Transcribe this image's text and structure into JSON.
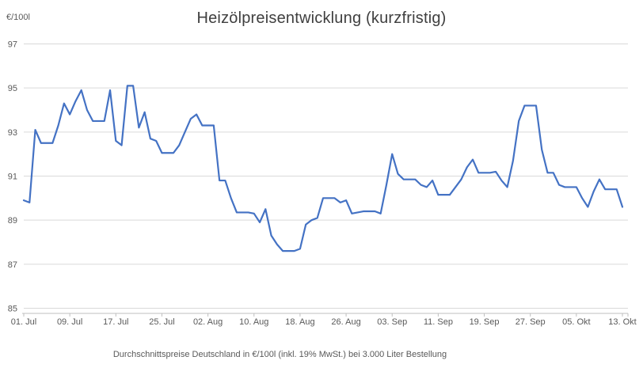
{
  "chart": {
    "title": "Heizölpreisentwicklung (kurzfristig)",
    "unit_label": "€/100l",
    "footnote": "Durchschnittspreise Deutschland in €/100l (inkl. 19% MwSt.) bei 3.000 Liter Bestellung"
  },
  "colors": {
    "line": "#4472C4",
    "gridline": "#D9D9D9",
    "axis": "#BFBFBF",
    "tick_text": "#595959",
    "title_text": "#3f3f3f"
  },
  "chart_data": {
    "type": "line",
    "title": "Heizölpreisentwicklung (kurzfristig)",
    "ylabel": "€/100l",
    "xlabel": "",
    "ylim": [
      85,
      97
    ],
    "grid": true,
    "legend": "none",
    "y_tick_labels": [
      "97",
      "95",
      "93",
      "91",
      "89",
      "87",
      "85"
    ],
    "y_ticks": [
      97,
      95,
      93,
      91,
      89,
      87,
      85
    ],
    "x_tick_labels": [
      "01. Jul",
      "09. Jul",
      "17. Jul",
      "25. Jul",
      "02. Aug",
      "10. Aug",
      "18. Aug",
      "26. Aug",
      "03. Sep",
      "11. Sep",
      "19. Sep",
      "27. Sep",
      "05. Okt",
      "13. Okt"
    ],
    "x_tick_interval_days": 8,
    "x_frequency": "daily",
    "x_start_label": "01. Jul",
    "x_end_label": "13. Okt",
    "values": [
      89.9,
      89.8,
      93.1,
      92.5,
      92.5,
      92.5,
      93.3,
      94.3,
      93.8,
      94.4,
      94.9,
      94.0,
      93.5,
      93.5,
      93.5,
      94.9,
      92.6,
      92.4,
      95.1,
      95.1,
      93.2,
      93.9,
      92.7,
      92.6,
      92.05,
      92.05,
      92.05,
      92.4,
      93.0,
      93.6,
      93.8,
      93.3,
      93.3,
      93.3,
      90.8,
      90.8,
      90.0,
      89.35,
      89.35,
      89.35,
      89.3,
      88.9,
      89.5,
      88.3,
      87.9,
      87.6,
      87.6,
      87.6,
      87.7,
      88.8,
      89.0,
      89.1,
      90.0,
      90.0,
      90.0,
      89.8,
      89.9,
      89.3,
      89.35,
      89.4,
      89.4,
      89.4,
      89.3,
      90.6,
      92.0,
      91.1,
      90.85,
      90.85,
      90.85,
      90.6,
      90.5,
      90.8,
      90.15,
      90.15,
      90.15,
      90.5,
      90.85,
      91.4,
      91.75,
      91.15,
      91.15,
      91.15,
      91.2,
      90.8,
      90.5,
      91.7,
      93.5,
      94.2,
      94.2,
      94.2,
      92.2,
      91.15,
      91.15,
      90.6,
      90.5,
      90.5,
      90.5,
      90.0,
      89.6,
      90.3,
      90.85,
      90.4,
      90.4,
      90.4,
      89.6
    ]
  }
}
